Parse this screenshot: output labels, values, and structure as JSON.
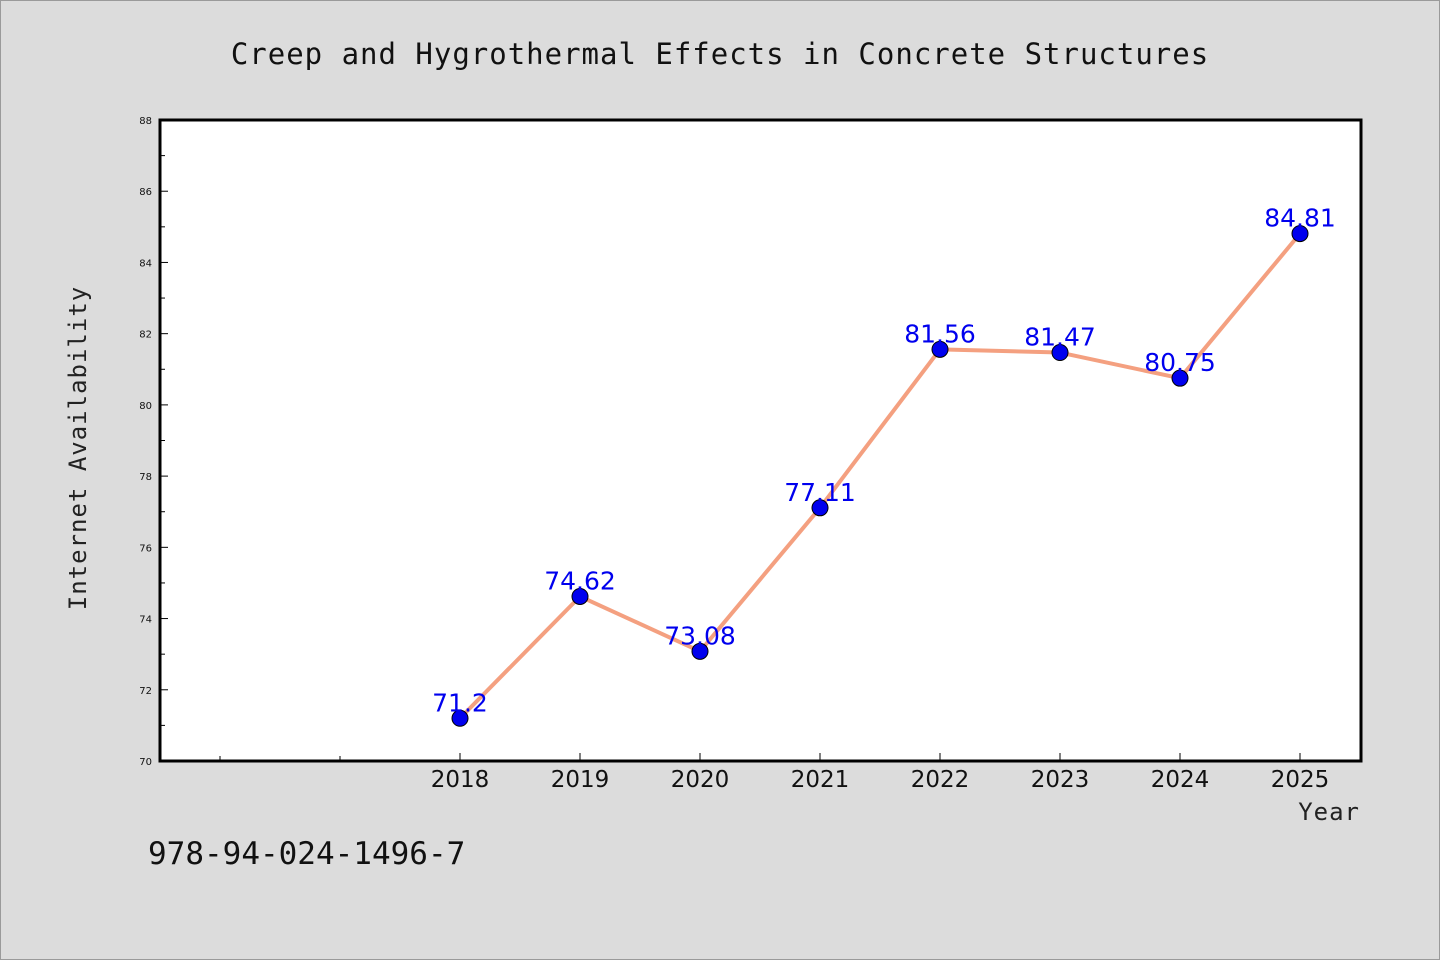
{
  "chart_data": {
    "type": "line",
    "title": "Creep and Hygrothermal Effects in Concrete Structures",
    "xlabel": "Year",
    "ylabel": "Internet Availability",
    "categories": [
      "2018",
      "2019",
      "2020",
      "2021",
      "2022",
      "2023",
      "2024",
      "2025"
    ],
    "series": [
      {
        "values": [
          71.2,
          74.62,
          73.08,
          77.11,
          81.56,
          81.47,
          80.75,
          84.81
        ]
      }
    ],
    "data_labels": [
      "71.2",
      "74.62",
      "73.08",
      "77.11",
      "81.56",
      "81.47",
      "80.75",
      "84.81"
    ],
    "ylim": [
      70,
      88
    ],
    "yticks": [
      "70",
      "72",
      "74",
      "76",
      "78",
      "80",
      "82",
      "84",
      "86",
      "88"
    ],
    "grid": false,
    "line_color": "#f4a080",
    "marker_color": "#0000ee",
    "label_color": "#0000ee",
    "background": "#dcdcdc",
    "plot_background": "#ffffff"
  },
  "footer": {
    "isbn": "978-94-024-1496-7"
  }
}
